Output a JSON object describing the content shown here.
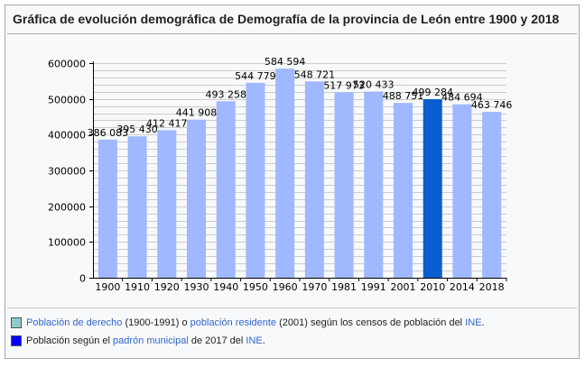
{
  "title": "Gráfica de evolución demográfica de Demografía de la provincia de León entre 1900 y 2018",
  "colors": {
    "bar": "#9fb8ff",
    "highlight": "#0a5ecf",
    "grid": "#cccccc",
    "legend_censo": "#8fc9c8",
    "legend_padron": "#0000ff"
  },
  "chart_data": {
    "type": "bar",
    "categories": [
      "1900",
      "1910",
      "1920",
      "1930",
      "1940",
      "1950",
      "1960",
      "1970",
      "1981",
      "1991",
      "2001",
      "2010",
      "2014",
      "2018"
    ],
    "values": [
      386083,
      395430,
      412417,
      441908,
      493258,
      544779,
      584594,
      548721,
      517973,
      520433,
      488751,
      499284,
      484694,
      463746
    ],
    "value_labels": [
      "386 083",
      "395 430",
      "412 417",
      "441 908",
      "493 258",
      "544 779",
      "584 594",
      "548 721",
      "517 973",
      "520 433",
      "488 751",
      "499 284",
      "484 694",
      "463 746"
    ],
    "highlight_index": 11,
    "y_ticks": [
      "0",
      "100000",
      "200000",
      "300000",
      "400000",
      "500000",
      "600000"
    ],
    "ylim": [
      0,
      600000
    ],
    "grid": true
  },
  "legend": {
    "item1": {
      "link1": "Población de derecho",
      "text1": " (1900-1991) o ",
      "link2": "población residente",
      "text2": " (2001) según los censos de población del ",
      "link3": "INE",
      "text3": "."
    },
    "item2": {
      "text1": "Población según el ",
      "link1": "padrón municipal",
      "text2": " de 2017 del ",
      "link2": "INE",
      "text3": "."
    }
  }
}
